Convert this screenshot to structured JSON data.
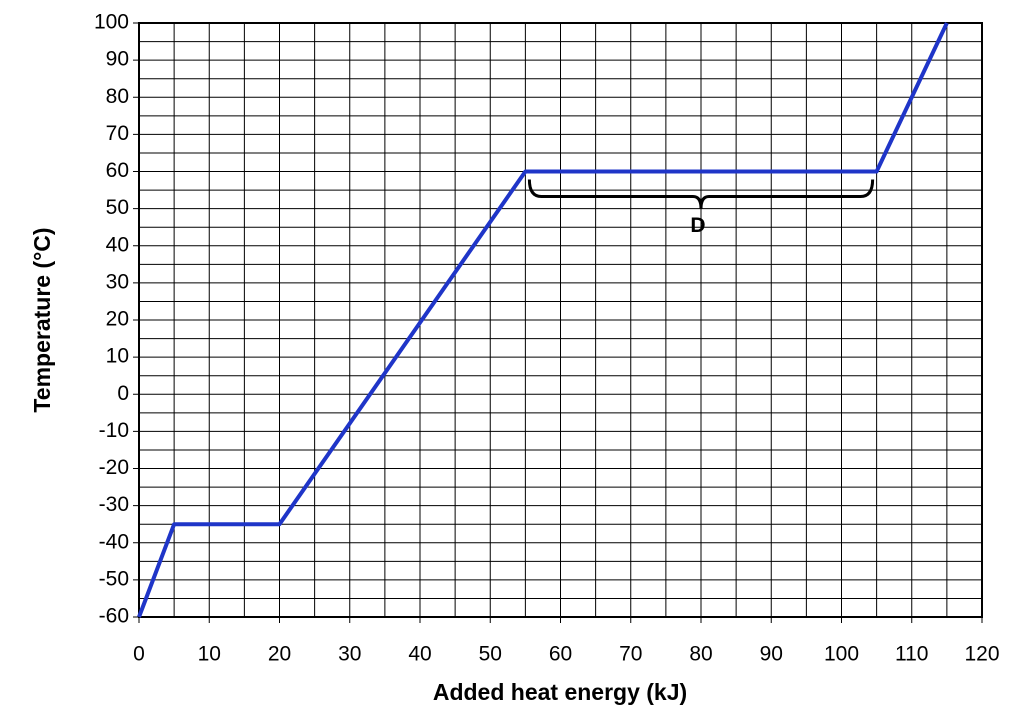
{
  "chart_data": {
    "type": "line",
    "x_label": "Added  heat energy (kJ)",
    "y_label": "Temperature (°C)",
    "x": [
      0,
      5,
      20,
      55,
      105,
      115
    ],
    "series": [
      {
        "color": "#1f35c8",
        "values": [
          -60,
          -35,
          -35,
          60,
          60,
          100
        ]
      }
    ],
    "xlim": [
      0,
      120
    ],
    "xticks": [
      0,
      10,
      20,
      30,
      40,
      50,
      60,
      70,
      80,
      90,
      100,
      110,
      120
    ],
    "ylim": [
      -60,
      100
    ],
    "yticks": [
      -60,
      -50,
      -40,
      -30,
      -20,
      -10,
      0,
      10,
      20,
      30,
      40,
      50,
      60,
      70,
      80,
      90,
      100
    ],
    "grid": true,
    "annotations": [
      {
        "text": "D",
        "x0": 55,
        "x1": 105,
        "y": 60
      }
    ]
  }
}
